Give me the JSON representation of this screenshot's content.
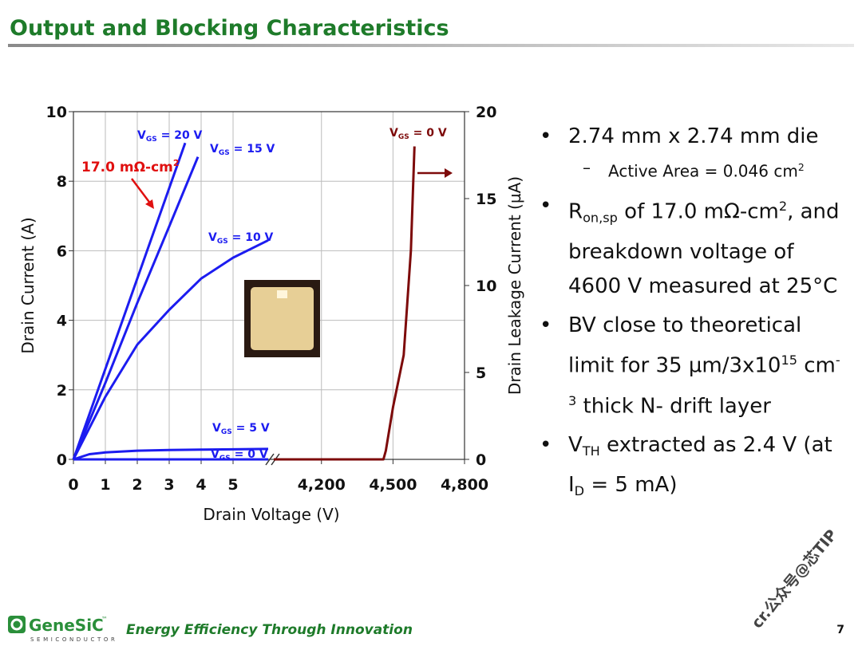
{
  "header": {
    "title": "Output and Blocking Characteristics"
  },
  "chart_data": {
    "type": "line",
    "x_label": "Drain Voltage (V)",
    "y_label": "Drain Current (A)",
    "y2_label": "Drain Leakage Current (µA)",
    "xlim": [
      0,
      6.2
    ],
    "xticks": [
      0,
      1,
      2,
      3,
      4,
      5
    ],
    "x2lim": [
      4000,
      4800
    ],
    "x2ticks": [
      {
        "value": 4200,
        "label": "4,200"
      },
      {
        "value": 4500,
        "label": "4,500"
      },
      {
        "value": 4800,
        "label": "4,800"
      }
    ],
    "ylim": [
      0,
      10
    ],
    "yticks": [
      0,
      2,
      4,
      6,
      8,
      10
    ],
    "y2lim": [
      0,
      20
    ],
    "y2ticks": [
      0,
      5,
      10,
      15,
      20
    ],
    "grid": true,
    "series": [
      {
        "label": {
          "main": "V",
          "sub": "GS",
          "rest": " = 20 V"
        },
        "color": "#1c1cf0",
        "x": [
          0,
          1,
          2,
          3,
          3.5
        ],
        "values": [
          0,
          2.6,
          5.2,
          7.8,
          9.1
        ]
      },
      {
        "label": {
          "main": "V",
          "sub": "GS",
          "rest": " = 15 V"
        },
        "color": "#1c1cf0",
        "x": [
          0,
          1,
          2,
          3,
          3.9
        ],
        "values": [
          0,
          2.2,
          4.5,
          6.7,
          8.7
        ]
      },
      {
        "label": {
          "main": "V",
          "sub": "GS",
          "rest": " = 10 V"
        },
        "color": "#1c1cf0",
        "x": [
          0,
          1,
          2,
          3,
          4,
          5,
          6.1
        ],
        "values": [
          0,
          1.8,
          3.3,
          4.3,
          5.2,
          5.8,
          6.3
        ]
      },
      {
        "label": {
          "main": "V",
          "sub": "GS",
          "rest": " = 5 V"
        },
        "color": "#1c1cf0",
        "x": [
          0,
          0.5,
          1,
          2,
          3,
          4,
          5,
          6.1
        ],
        "values": [
          0,
          0.15,
          0.2,
          0.25,
          0.27,
          0.28,
          0.29,
          0.3
        ]
      },
      {
        "label": {
          "main": "V",
          "sub": "GS",
          "rest": " = 0 V"
        },
        "color": "#1c1cf0",
        "x": [
          0,
          6.1
        ],
        "values": [
          0,
          0
        ]
      },
      {
        "label": {
          "main": "V",
          "sub": "GS",
          "rest": " = 0 V"
        },
        "color": "#7d0a0a",
        "axis": "y2",
        "x_axis": "x2",
        "x": [
          4000,
          4460,
          4470,
          4500,
          4545,
          4575,
          4590
        ],
        "values": [
          0,
          0,
          0.5,
          3,
          6,
          12,
          18
        ]
      }
    ],
    "annotation": {
      "main": "17.0 mΩ-cm",
      "sup": "2"
    }
  },
  "bullets": [
    {
      "level": 1,
      "runs": [
        {
          "text": "2.74 mm x 2.74 mm die"
        }
      ]
    },
    {
      "level": 2,
      "runs": [
        {
          "text": "Active Area = 0.046 cm"
        },
        {
          "text": "2",
          "pos": "sup"
        }
      ]
    },
    {
      "level": 1,
      "runs": [
        {
          "text": "R"
        },
        {
          "text": "on,sp",
          "pos": "sub"
        },
        {
          "text": " of 17.0 mΩ-cm"
        },
        {
          "text": "2",
          "pos": "sup"
        },
        {
          "text": ", and breakdown voltage of 4600 V measured at 25°C"
        }
      ]
    },
    {
      "level": 1,
      "runs": [
        {
          "text": "BV close to theoretical limit for 35 µm/3x10"
        },
        {
          "text": "15",
          "pos": "sup"
        },
        {
          "text": " cm"
        },
        {
          "text": "-3",
          "pos": "sup"
        },
        {
          "text": " thick N- drift layer"
        }
      ]
    },
    {
      "level": 1,
      "runs": [
        {
          "text": "V"
        },
        {
          "text": "TH",
          "pos": "sub"
        },
        {
          "text": " extracted as 2.4 V (at I"
        },
        {
          "text": "D",
          "pos": "sub"
        },
        {
          "text": " = 5 mA)"
        }
      ]
    }
  ],
  "watermark": "cr.公众号@芯TIP",
  "footer": {
    "logo": "GeneSiC",
    "trademark": "™",
    "logo_sub": "SEMICONDUCTOR",
    "tagline": "Energy Efficiency Through Innovation",
    "page": "7"
  }
}
